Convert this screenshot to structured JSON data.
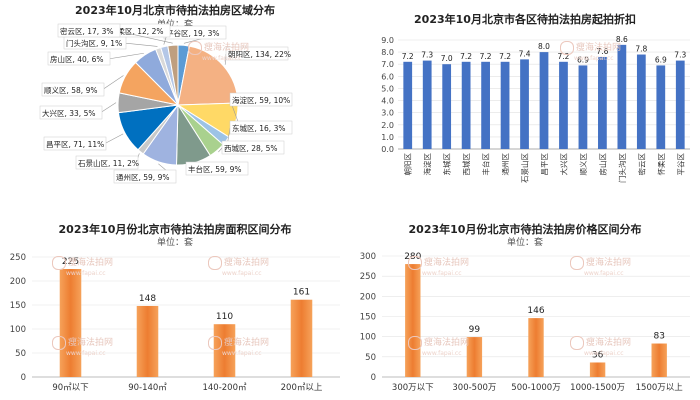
{
  "watermark": {
    "text": "瘦海法拍网",
    "url": "www.fapai.cc"
  },
  "chart_data": [
    {
      "type": "pie",
      "title": "2023年10月北京市待拍法拍房区域分布",
      "unit": "单位：套",
      "slices": [
        {
          "label": "平谷区",
          "value": 19,
          "pct": "3%",
          "color": "#5b9bd5"
        },
        {
          "label": "朝阳区",
          "value": 134,
          "pct": "22%",
          "color": "#f4b183"
        },
        {
          "label": "海淀区",
          "value": 59,
          "pct": "10%",
          "color": "#ffd966"
        },
        {
          "label": "东城区",
          "value": 16,
          "pct": "3%",
          "color": "#9dc3e6"
        },
        {
          "label": "西城区",
          "value": 28,
          "pct": "5%",
          "color": "#a9d18e"
        },
        {
          "label": "丰台区",
          "value": 59,
          "pct": "9%",
          "color": "#7f9a8c"
        },
        {
          "label": "通州区",
          "value": 59,
          "pct": "9%",
          "color": "#9fb3e0"
        },
        {
          "label": "石景山区",
          "value": 11,
          "pct": "2%",
          "color": "#c9c9c9"
        },
        {
          "label": "昌平区",
          "value": 71,
          "pct": "11%",
          "color": "#0070c0"
        },
        {
          "label": "大兴区",
          "value": 33,
          "pct": "5%",
          "color": "#a5a5a5"
        },
        {
          "label": "顺义区",
          "value": 58,
          "pct": "9%",
          "color": "#f4a460"
        },
        {
          "label": "房山区",
          "value": 40,
          "pct": "6%",
          "color": "#8faadc"
        },
        {
          "label": "门头沟区",
          "value": 9,
          "pct": "1%",
          "color": "#d9d9d9"
        },
        {
          "label": "怀柔区",
          "value": 12,
          "pct": "2%",
          "color": "#b4c7e7"
        },
        {
          "label": "密云区",
          "value": 17,
          "pct": "3%",
          "color": "#bf9f7f"
        }
      ]
    },
    {
      "type": "bar",
      "title": "2023年10月北京市各区待拍法拍房起拍折扣",
      "categories": [
        "朝阳区",
        "海淀区",
        "东城区",
        "西城区",
        "丰台区",
        "通州区",
        "石景山区",
        "昌平区",
        "大兴区",
        "顺义区",
        "房山区",
        "门头沟区",
        "密云区",
        "怀柔区",
        "平谷区"
      ],
      "values": [
        7.2,
        7.3,
        7.0,
        7.2,
        7.2,
        7.2,
        7.4,
        8.0,
        7.2,
        6.9,
        7.6,
        8.6,
        7.8,
        6.9,
        7.3
      ],
      "ylim": [
        0,
        9
      ],
      "yticks": [
        "0.0",
        "1.0",
        "2.0",
        "3.0",
        "4.0",
        "5.0",
        "6.0",
        "7.0",
        "8.0",
        "9.0"
      ],
      "color": "#4472c4",
      "grid": true
    },
    {
      "type": "bar",
      "title": "2023年10月份北京市待拍法拍房面积区间分布",
      "unit": "单位：套",
      "categories": [
        "90㎡以下",
        "90-140㎡",
        "140-200㎡",
        "200㎡以上"
      ],
      "values": [
        225,
        148,
        110,
        161
      ],
      "ylim": [
        0,
        250
      ],
      "yticks": [
        "0",
        "50",
        "100",
        "150",
        "200",
        "250"
      ],
      "color": "#ed7d31",
      "grid": true
    },
    {
      "type": "bar",
      "title": "2023年10月份北京市待拍法拍房价格区间分布",
      "unit": "单位：套",
      "categories": [
        "300万以下",
        "300-500万",
        "500-1000万",
        "1000-1500万",
        "1500万以上"
      ],
      "values": [
        280,
        99,
        146,
        36,
        83
      ],
      "ylim": [
        0,
        300
      ],
      "yticks": [
        "0",
        "50",
        "100",
        "150",
        "200",
        "250",
        "300"
      ],
      "color": "#ed7d31",
      "grid": true
    }
  ]
}
